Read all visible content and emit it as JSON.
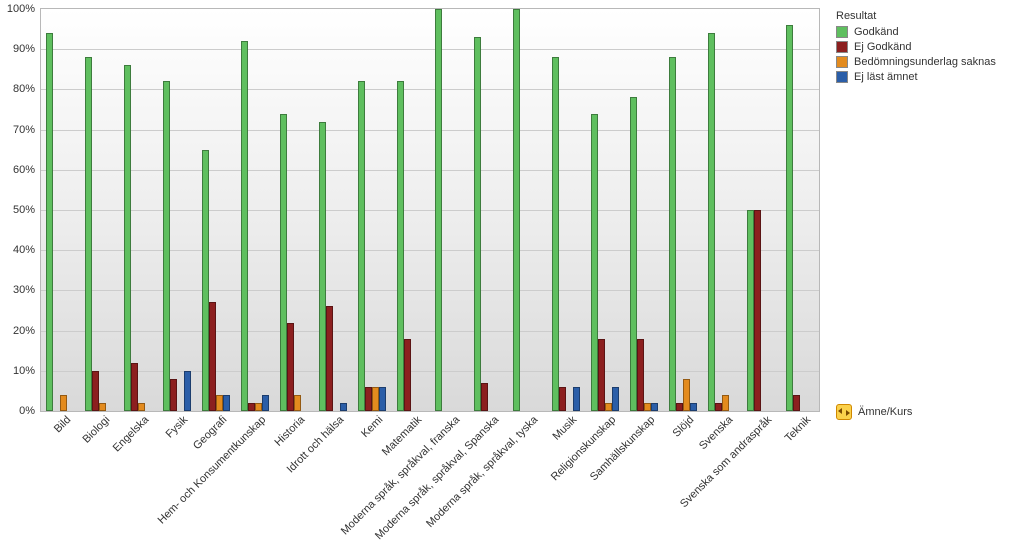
{
  "chart": {
    "type": "bar",
    "ylim": [
      0,
      100
    ],
    "ytick_step": 10,
    "background_gradient": [
      "#ffffff",
      "#ececec",
      "#d9d9d9"
    ],
    "grid_color": "#cccccc",
    "plot_border_color": "#b8b8b8",
    "bar_border_color": "rgba(0,0,0,0.35)",
    "label_fontsize": 11,
    "legend_title": "Resultat",
    "x_axis_label": "Ämne/Kurs",
    "yticks": [
      {
        "v": 0,
        "label": "0%"
      },
      {
        "v": 10,
        "label": "10%"
      },
      {
        "v": 20,
        "label": "20%"
      },
      {
        "v": 30,
        "label": "30%"
      },
      {
        "v": 40,
        "label": "40%"
      },
      {
        "v": 50,
        "label": "50%"
      },
      {
        "v": 60,
        "label": "60%"
      },
      {
        "v": 70,
        "label": "70%"
      },
      {
        "v": 80,
        "label": "80%"
      },
      {
        "v": 90,
        "label": "90%"
      },
      {
        "v": 100,
        "label": "100%"
      }
    ],
    "series": [
      {
        "key": "godkand",
        "label": "Godkänd",
        "color": "#5fbf5f"
      },
      {
        "key": "ej_godkand",
        "label": "Ej Godkänd",
        "color": "#8c1f1f"
      },
      {
        "key": "bedom_saknas",
        "label": "Bedömningsunderlag saknas",
        "color": "#e38b1e"
      },
      {
        "key": "ej_last",
        "label": "Ej läst ämnet",
        "color": "#2b5ea8"
      }
    ],
    "categories": [
      {
        "label": "Bild",
        "values": {
          "godkand": 94,
          "ej_godkand": 0,
          "bedom_saknas": 4,
          "ej_last": 0
        }
      },
      {
        "label": "Biologi",
        "values": {
          "godkand": 88,
          "ej_godkand": 10,
          "bedom_saknas": 2,
          "ej_last": 0
        }
      },
      {
        "label": "Engelska",
        "values": {
          "godkand": 86,
          "ej_godkand": 12,
          "bedom_saknas": 2,
          "ej_last": 0
        }
      },
      {
        "label": "Fysik",
        "values": {
          "godkand": 82,
          "ej_godkand": 8,
          "bedom_saknas": 0,
          "ej_last": 10
        }
      },
      {
        "label": "Geografi",
        "values": {
          "godkand": 65,
          "ej_godkand": 27,
          "bedom_saknas": 4,
          "ej_last": 4
        }
      },
      {
        "label": "Hem- och Konsumentkunskap",
        "values": {
          "godkand": 92,
          "ej_godkand": 2,
          "bedom_saknas": 2,
          "ej_last": 4
        }
      },
      {
        "label": "Historia",
        "values": {
          "godkand": 74,
          "ej_godkand": 22,
          "bedom_saknas": 4,
          "ej_last": 0
        }
      },
      {
        "label": "Idrott och hälsa",
        "values": {
          "godkand": 72,
          "ej_godkand": 26,
          "bedom_saknas": 0,
          "ej_last": 2
        }
      },
      {
        "label": "Kemi",
        "values": {
          "godkand": 82,
          "ej_godkand": 6,
          "bedom_saknas": 6,
          "ej_last": 6
        }
      },
      {
        "label": "Matematik",
        "values": {
          "godkand": 82,
          "ej_godkand": 18,
          "bedom_saknas": 0,
          "ej_last": 0
        }
      },
      {
        "label": "Moderna språk, språkval, franska",
        "values": {
          "godkand": 100,
          "ej_godkand": 0,
          "bedom_saknas": 0,
          "ej_last": 0
        }
      },
      {
        "label": "Moderna språk, språkval, Spanska",
        "values": {
          "godkand": 93,
          "ej_godkand": 7,
          "bedom_saknas": 0,
          "ej_last": 0
        }
      },
      {
        "label": "Moderna språk, språkval, tyska",
        "values": {
          "godkand": 100,
          "ej_godkand": 0,
          "bedom_saknas": 0,
          "ej_last": 0
        }
      },
      {
        "label": "Musik",
        "values": {
          "godkand": 88,
          "ej_godkand": 6,
          "bedom_saknas": 0,
          "ej_last": 6
        }
      },
      {
        "label": "Religionskunskap",
        "values": {
          "godkand": 74,
          "ej_godkand": 18,
          "bedom_saknas": 2,
          "ej_last": 6
        }
      },
      {
        "label": "Samhällskunskap",
        "values": {
          "godkand": 78,
          "ej_godkand": 18,
          "bedom_saknas": 2,
          "ej_last": 2
        }
      },
      {
        "label": "Slöjd",
        "values": {
          "godkand": 88,
          "ej_godkand": 2,
          "bedom_saknas": 8,
          "ej_last": 2
        }
      },
      {
        "label": "Svenska",
        "values": {
          "godkand": 94,
          "ej_godkand": 2,
          "bedom_saknas": 4,
          "ej_last": 0
        }
      },
      {
        "label": "Svenska som andraspråk",
        "values": {
          "godkand": 50,
          "ej_godkand": 50,
          "bedom_saknas": 0,
          "ej_last": 0
        }
      },
      {
        "label": "Teknik",
        "values": {
          "godkand": 96,
          "ej_godkand": 4,
          "bedom_saknas": 0,
          "ej_last": 0
        }
      }
    ]
  }
}
